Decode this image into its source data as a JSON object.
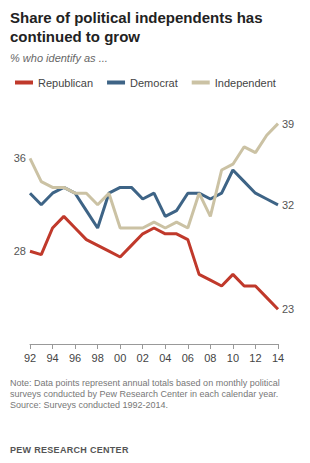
{
  "chart_data": {
    "type": "line",
    "title": "Share of political independents has continued to grow",
    "subtitle": "% who identify as ...",
    "note": "Note: Data points represent annual totals based on monthly political surveys conducted by Pew Research Center in each calendar year.",
    "source": "Source: Surveys conducted 1992-2014.",
    "credit": "PEW RESEARCH CENTER",
    "categories": [
      "92",
      null,
      "94",
      null,
      "96",
      null,
      "98",
      null,
      "00",
      null,
      "02",
      null,
      "04",
      null,
      "06",
      null,
      "08",
      null,
      "10",
      null,
      "12",
      null,
      "14"
    ],
    "series": [
      {
        "name": "Republican",
        "color": "#c0392b",
        "values": [
          28,
          27.7,
          30,
          31,
          30,
          29,
          28.5,
          28,
          27.5,
          28.5,
          29.5,
          30,
          29.5,
          29.5,
          29,
          26,
          25.5,
          25,
          26,
          25,
          25,
          24,
          23
        ],
        "value_labels": [
          "28",
          null,
          null,
          null,
          null,
          null,
          null,
          null,
          null,
          null,
          null,
          null,
          null,
          null,
          null,
          null,
          null,
          null,
          null,
          null,
          null,
          null,
          "23"
        ]
      },
      {
        "name": "Democrat",
        "color": "#3e6486",
        "values": [
          33,
          32,
          33,
          33.5,
          33,
          31.5,
          30,
          33,
          33.5,
          33.5,
          32.5,
          33,
          31,
          31.5,
          33,
          33,
          32.5,
          33,
          35,
          34,
          33,
          32.5,
          32
        ],
        "value_labels": [
          null,
          null,
          null,
          null,
          null,
          null,
          null,
          null,
          null,
          null,
          null,
          null,
          null,
          null,
          null,
          null,
          null,
          null,
          null,
          null,
          null,
          null,
          "32"
        ]
      },
      {
        "name": "Independent",
        "color": "#cbc2a4",
        "values": [
          36,
          34,
          33.5,
          33.5,
          33,
          33,
          32,
          33,
          30,
          30,
          30,
          30.5,
          30,
          30.5,
          30,
          33,
          31,
          35,
          35.5,
          37,
          36.5,
          38,
          39
        ],
        "value_labels": [
          "36",
          null,
          null,
          null,
          null,
          null,
          null,
          null,
          null,
          null,
          null,
          null,
          null,
          null,
          null,
          null,
          null,
          null,
          null,
          null,
          null,
          null,
          "39"
        ]
      }
    ],
    "ylim": [
      20,
      40
    ],
    "tick_labels": "x",
    "grid": false,
    "data_labels": true,
    "legend": "top"
  }
}
